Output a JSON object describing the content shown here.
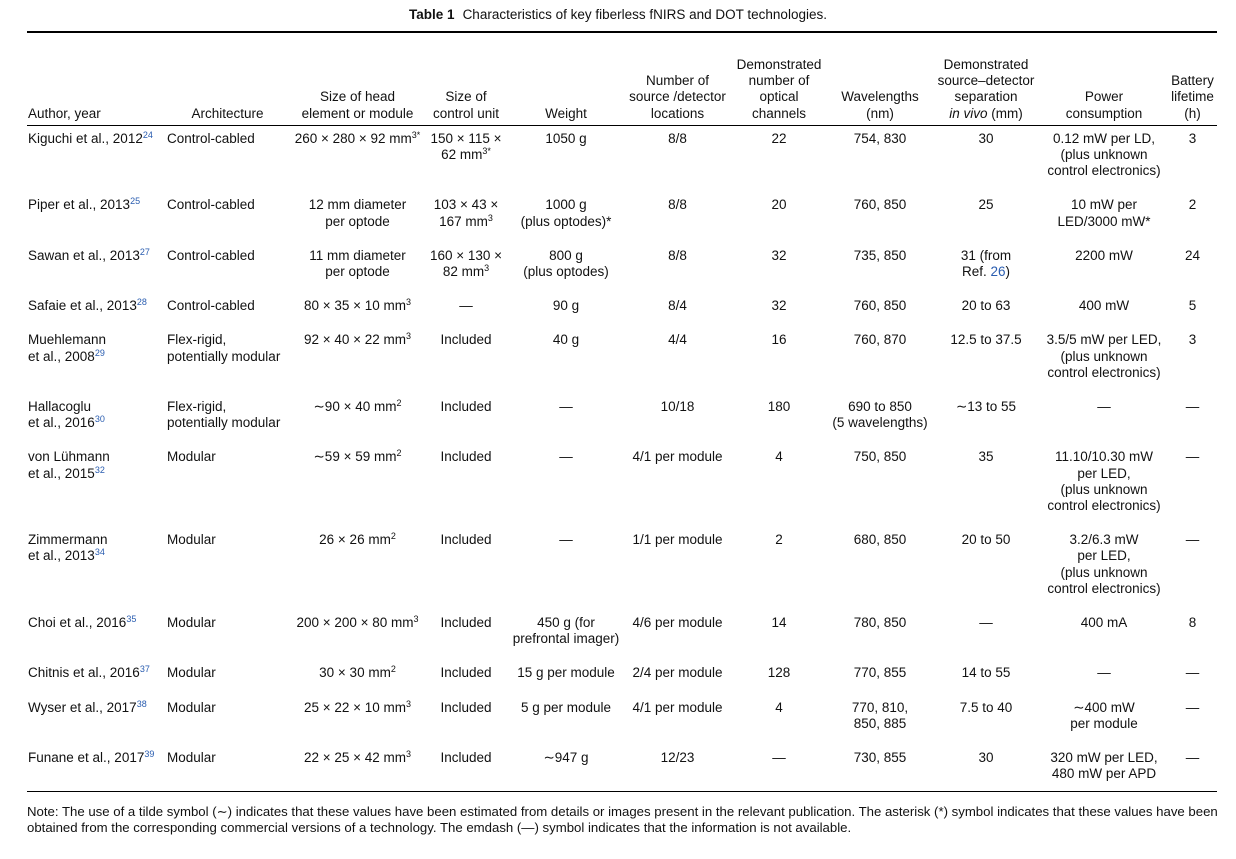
{
  "title": {
    "label": "Table 1",
    "text": "Characteristics of key fiberless fNIRS and DOT technologies."
  },
  "table": {
    "header": [
      [
        "Author, year"
      ],
      [
        "Architecture"
      ],
      [
        "Size of head",
        "element or module"
      ],
      [
        "Size of",
        "control unit"
      ],
      [
        "Weight"
      ],
      [
        "Number of",
        "source /detector",
        "locations"
      ],
      [
        "Demonstrated",
        "number of",
        "optical",
        "channels"
      ],
      [
        "Wavelengths",
        "(nm)"
      ],
      [
        "Demonstrated",
        "source–detector",
        "separation",
        [
          {
            "em": "in vivo"
          },
          " (mm)"
        ]
      ],
      [
        "Power",
        "consumption"
      ],
      [
        "Battery",
        "lifetime",
        "(h)"
      ]
    ],
    "rows": [
      [
        [
          [
            "Kiguchi et al., 2012",
            {
              "ref": "24"
            }
          ]
        ],
        [
          "Control-cabled"
        ],
        [
          [
            "260 × 280 × 92 mm",
            {
              "sup": "3*"
            }
          ]
        ],
        [
          "150 × 115 ×",
          [
            "62 mm",
            {
              "sup": "3*"
            }
          ]
        ],
        [
          "1050 g"
        ],
        [
          "8/8"
        ],
        [
          "22"
        ],
        [
          "754, 830"
        ],
        [
          "30"
        ],
        [
          "0.12 mW per LD,",
          "(plus unknown",
          "control electronics)"
        ],
        [
          "3"
        ]
      ],
      [
        [
          [
            "Piper et al., 2013",
            {
              "ref": "25"
            }
          ]
        ],
        [
          "Control-cabled"
        ],
        [
          "12 mm diameter",
          "per optode"
        ],
        [
          "103 × 43 ×",
          [
            "167 mm",
            {
              "sup": "3"
            }
          ]
        ],
        [
          "1000 g",
          "(plus optodes)*"
        ],
        [
          "8/8"
        ],
        [
          "20"
        ],
        [
          "760, 850"
        ],
        [
          "25"
        ],
        [
          "10 mW per",
          "LED/3000 mW*"
        ],
        [
          "2"
        ]
      ],
      [
        [
          [
            "Sawan et al., 2013",
            {
              "ref": "27"
            }
          ]
        ],
        [
          "Control-cabled"
        ],
        [
          "11 mm diameter",
          "per optode"
        ],
        [
          "160 × 130 ×",
          [
            "82 mm",
            {
              "sup": "3"
            }
          ]
        ],
        [
          "800 g",
          "(plus optodes)"
        ],
        [
          "8/8"
        ],
        [
          "32"
        ],
        [
          "735, 850"
        ],
        [
          "31 (from",
          [
            "Ref. ",
            {
              "link": "26"
            },
            ")"
          ]
        ],
        [
          "2200 mW"
        ],
        [
          "24"
        ]
      ],
      [
        [
          [
            "Safaie et al., 2013",
            {
              "ref": "28"
            }
          ]
        ],
        [
          "Control-cabled"
        ],
        [
          [
            "80 × 35 × 10 mm",
            {
              "sup": "3"
            }
          ]
        ],
        [
          "—"
        ],
        [
          "90 g"
        ],
        [
          "8/4"
        ],
        [
          "32"
        ],
        [
          "760, 850"
        ],
        [
          "20 to 63"
        ],
        [
          "400 mW"
        ],
        [
          "5"
        ]
      ],
      [
        [
          "Muehlemann",
          [
            "et al., 2008",
            {
              "ref": "29"
            }
          ]
        ],
        [
          "Flex-rigid,",
          "potentially modular"
        ],
        [
          [
            "92 × 40 × 22 mm",
            {
              "sup": "3"
            }
          ]
        ],
        [
          "Included"
        ],
        [
          "40 g"
        ],
        [
          "4/4"
        ],
        [
          "16"
        ],
        [
          "760, 870"
        ],
        [
          "12.5 to 37.5"
        ],
        [
          "3.5/5 mW per LED,",
          "(plus unknown",
          "control electronics)"
        ],
        [
          "3"
        ]
      ],
      [
        [
          "Hallacoglu",
          [
            "et al., 2016",
            {
              "ref": "30"
            }
          ]
        ],
        [
          "Flex-rigid,",
          "potentially modular"
        ],
        [
          [
            "∼90 × 40 mm",
            {
              "sup": "2"
            }
          ]
        ],
        [
          "Included"
        ],
        [
          "—"
        ],
        [
          "10/18"
        ],
        [
          "180"
        ],
        [
          "690 to 850",
          "(5 wavelengths)"
        ],
        [
          "∼13 to 55"
        ],
        [
          "—"
        ],
        [
          "—"
        ]
      ],
      [
        [
          "von Lühmann",
          [
            "et al., 2015",
            {
              "ref": "32"
            }
          ]
        ],
        [
          "Modular"
        ],
        [
          [
            "∼59 × 59 mm",
            {
              "sup": "2"
            }
          ]
        ],
        [
          "Included"
        ],
        [
          "—"
        ],
        [
          "4/1 per module"
        ],
        [
          "4"
        ],
        [
          "750, 850"
        ],
        [
          "35"
        ],
        [
          "11.10/10.30 mW",
          "per LED,",
          "(plus unknown",
          "control electronics)"
        ],
        [
          "—"
        ]
      ],
      [
        [
          "Zimmermann",
          [
            "et al., 2013",
            {
              "ref": "34"
            }
          ]
        ],
        [
          "Modular"
        ],
        [
          [
            "26 × 26 mm",
            {
              "sup": "2"
            }
          ]
        ],
        [
          "Included"
        ],
        [
          "—"
        ],
        [
          "1/1 per module"
        ],
        [
          "2"
        ],
        [
          "680, 850"
        ],
        [
          "20 to 50"
        ],
        [
          "3.2/6.3 mW",
          "per LED,",
          "(plus unknown",
          "control electronics)"
        ],
        [
          "—"
        ]
      ],
      [
        [
          [
            "Choi et al., 2016",
            {
              "ref": "35"
            }
          ]
        ],
        [
          "Modular"
        ],
        [
          [
            "200 × 200 × 80 mm",
            {
              "sup": "3"
            }
          ]
        ],
        [
          "Included"
        ],
        [
          "450 g (for",
          "prefrontal imager)"
        ],
        [
          "4/6 per module"
        ],
        [
          "14"
        ],
        [
          "780, 850"
        ],
        [
          "—"
        ],
        [
          "400 mA"
        ],
        [
          "8"
        ]
      ],
      [
        [
          [
            "Chitnis et al., 2016",
            {
              "ref": "37"
            }
          ]
        ],
        [
          "Modular"
        ],
        [
          [
            "30 × 30 mm",
            {
              "sup": "2"
            }
          ]
        ],
        [
          "Included"
        ],
        [
          "15 g per module"
        ],
        [
          "2/4 per module"
        ],
        [
          "128"
        ],
        [
          "770, 855"
        ],
        [
          "14 to 55"
        ],
        [
          "—"
        ],
        [
          "—"
        ]
      ],
      [
        [
          [
            "Wyser et al., 2017",
            {
              "ref": "38"
            }
          ]
        ],
        [
          "Modular"
        ],
        [
          [
            "25 × 22 × 10 mm",
            {
              "sup": "3"
            }
          ]
        ],
        [
          "Included"
        ],
        [
          "5 g per module"
        ],
        [
          "4/1 per module"
        ],
        [
          "4"
        ],
        [
          "770, 810,",
          "850, 885"
        ],
        [
          "7.5 to 40"
        ],
        [
          "∼400 mW",
          "per module"
        ],
        [
          "—"
        ]
      ],
      [
        [
          [
            "Funane et al., 2017",
            {
              "ref": "39"
            }
          ]
        ],
        [
          "Modular"
        ],
        [
          [
            "22 × 25 × 42 mm",
            {
              "sup": "3"
            }
          ]
        ],
        [
          "Included"
        ],
        [
          "∼947 g"
        ],
        [
          "12/23"
        ],
        [
          "—"
        ],
        [
          "730, 855"
        ],
        [
          "30"
        ],
        [
          "320 mW per LED,",
          "480 mW per APD"
        ],
        [
          "—"
        ]
      ]
    ]
  },
  "note": "Note: The use of a tilde symbol (∼) indicates that these values have been estimated from details or images present in the relevant publication. The asterisk (*) symbol indicates that these values have been obtained from the corresponding commercial versions of a technology. The emdash (—) symbol indicates that the information is not available."
}
